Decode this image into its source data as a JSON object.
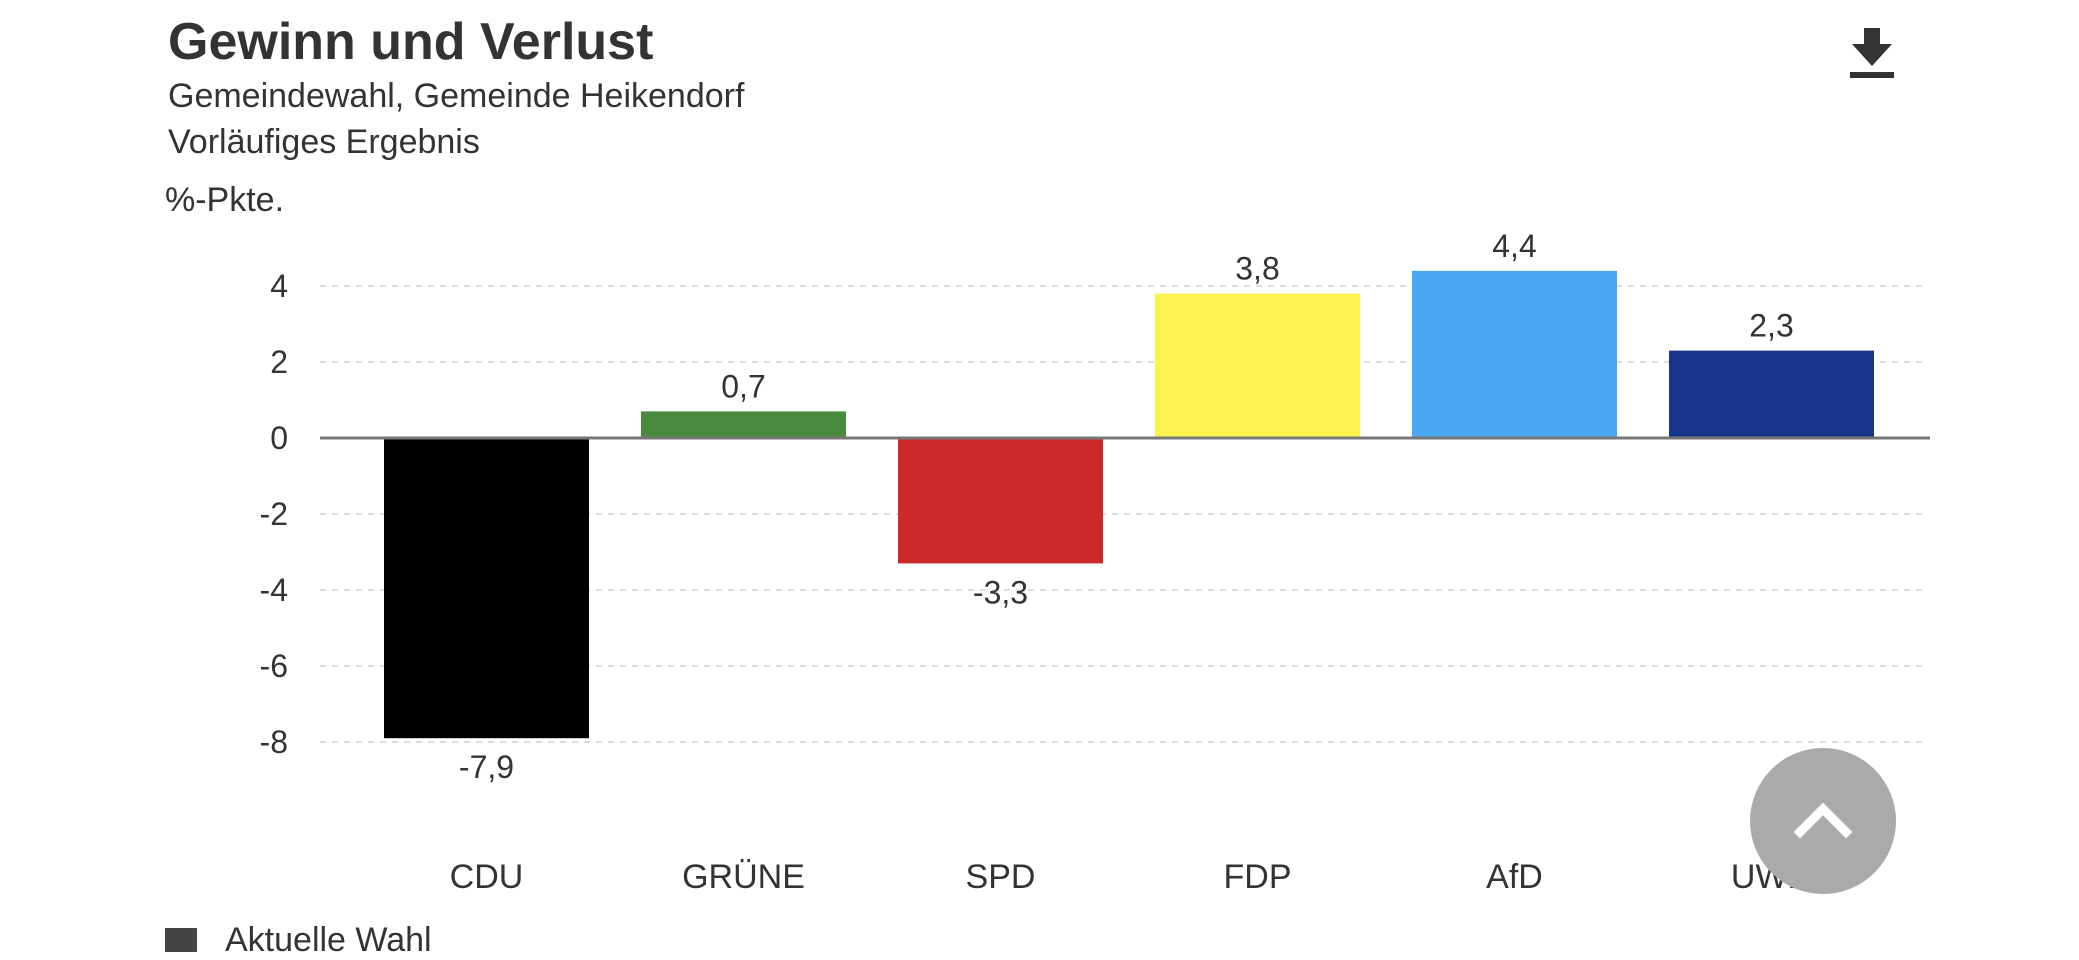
{
  "header": {
    "title": "Gewinn und Verlust",
    "subtitle_1": "Gemeindewahl, Gemeinde Heikendorf",
    "subtitle_2": "Vorläufiges Ergebnis",
    "download_icon": "download-icon"
  },
  "colors": {
    "text": "#333333",
    "grid": "#dddddd",
    "zero_line": "#777777",
    "scroll_button": "#aaaaaa",
    "legend_swatch": "#444444"
  },
  "chart_data": {
    "type": "bar",
    "title": "Gewinn und Verlust",
    "ylabel": "%-Pkte.",
    "xlabel": "",
    "ylim": [
      -8,
      4
    ],
    "yticks": [
      4,
      2,
      0,
      -2,
      -4,
      -6,
      -8
    ],
    "ytick_labels": [
      "4",
      "2",
      "0",
      "-2",
      "-4",
      "-6",
      "-8"
    ],
    "grid": true,
    "categories": [
      "CDU",
      "GRÜNE",
      "SPD",
      "FDP",
      "AfD",
      "UWH"
    ],
    "values": [
      -7.9,
      0.7,
      -3.3,
      3.8,
      4.4,
      2.3
    ],
    "value_labels": [
      "-7,9",
      "0,7",
      "-3,3",
      "3,8",
      "4,4",
      "2,3"
    ],
    "bar_colors": [
      "#000000",
      "#4a8a3e",
      "#cc2a2a",
      "#fbf24e",
      "#4aa8f5",
      "#163488"
    ],
    "legend": [
      {
        "name": "Aktuelle Wahl",
        "color": "#444444"
      }
    ]
  },
  "scroll_top_icon": "chevron-up-icon"
}
